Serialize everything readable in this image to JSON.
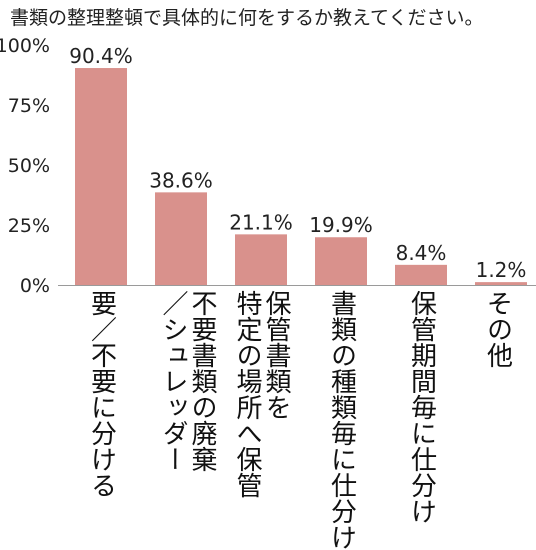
{
  "title": "書類の整理整頓で具体的に何をするか教えてください。",
  "chart_data": {
    "type": "bar",
    "categories": [
      "要／不要に分ける",
      "不要書類の廃棄／シュレッダー",
      "保管書類を特定の場所へ保管",
      "書類の種類毎に仕分け",
      "保管期間毎に仕分け",
      "その他"
    ],
    "category_lines": [
      [
        "要／不要に分ける"
      ],
      [
        "不要書類の廃棄",
        "／シュレッダー"
      ],
      [
        "保管書類を",
        "特定の場所へ保管"
      ],
      [
        "書類の種類毎に仕分け"
      ],
      [
        "保管期間毎に仕分け"
      ],
      [
        "その他"
      ]
    ],
    "values": [
      90.4,
      38.6,
      21.1,
      19.9,
      8.4,
      1.2
    ],
    "value_labels": [
      "90.4%",
      "38.6%",
      "21.1%",
      "19.9%",
      "8.4%",
      "1.2%"
    ],
    "y_ticks": [
      0,
      25,
      50,
      75,
      100
    ],
    "y_tick_labels": [
      "0%",
      "25%",
      "50%",
      "75%",
      "100%"
    ],
    "ylim": [
      0,
      100
    ],
    "bar_color": "#d9918c",
    "grid": false
  }
}
